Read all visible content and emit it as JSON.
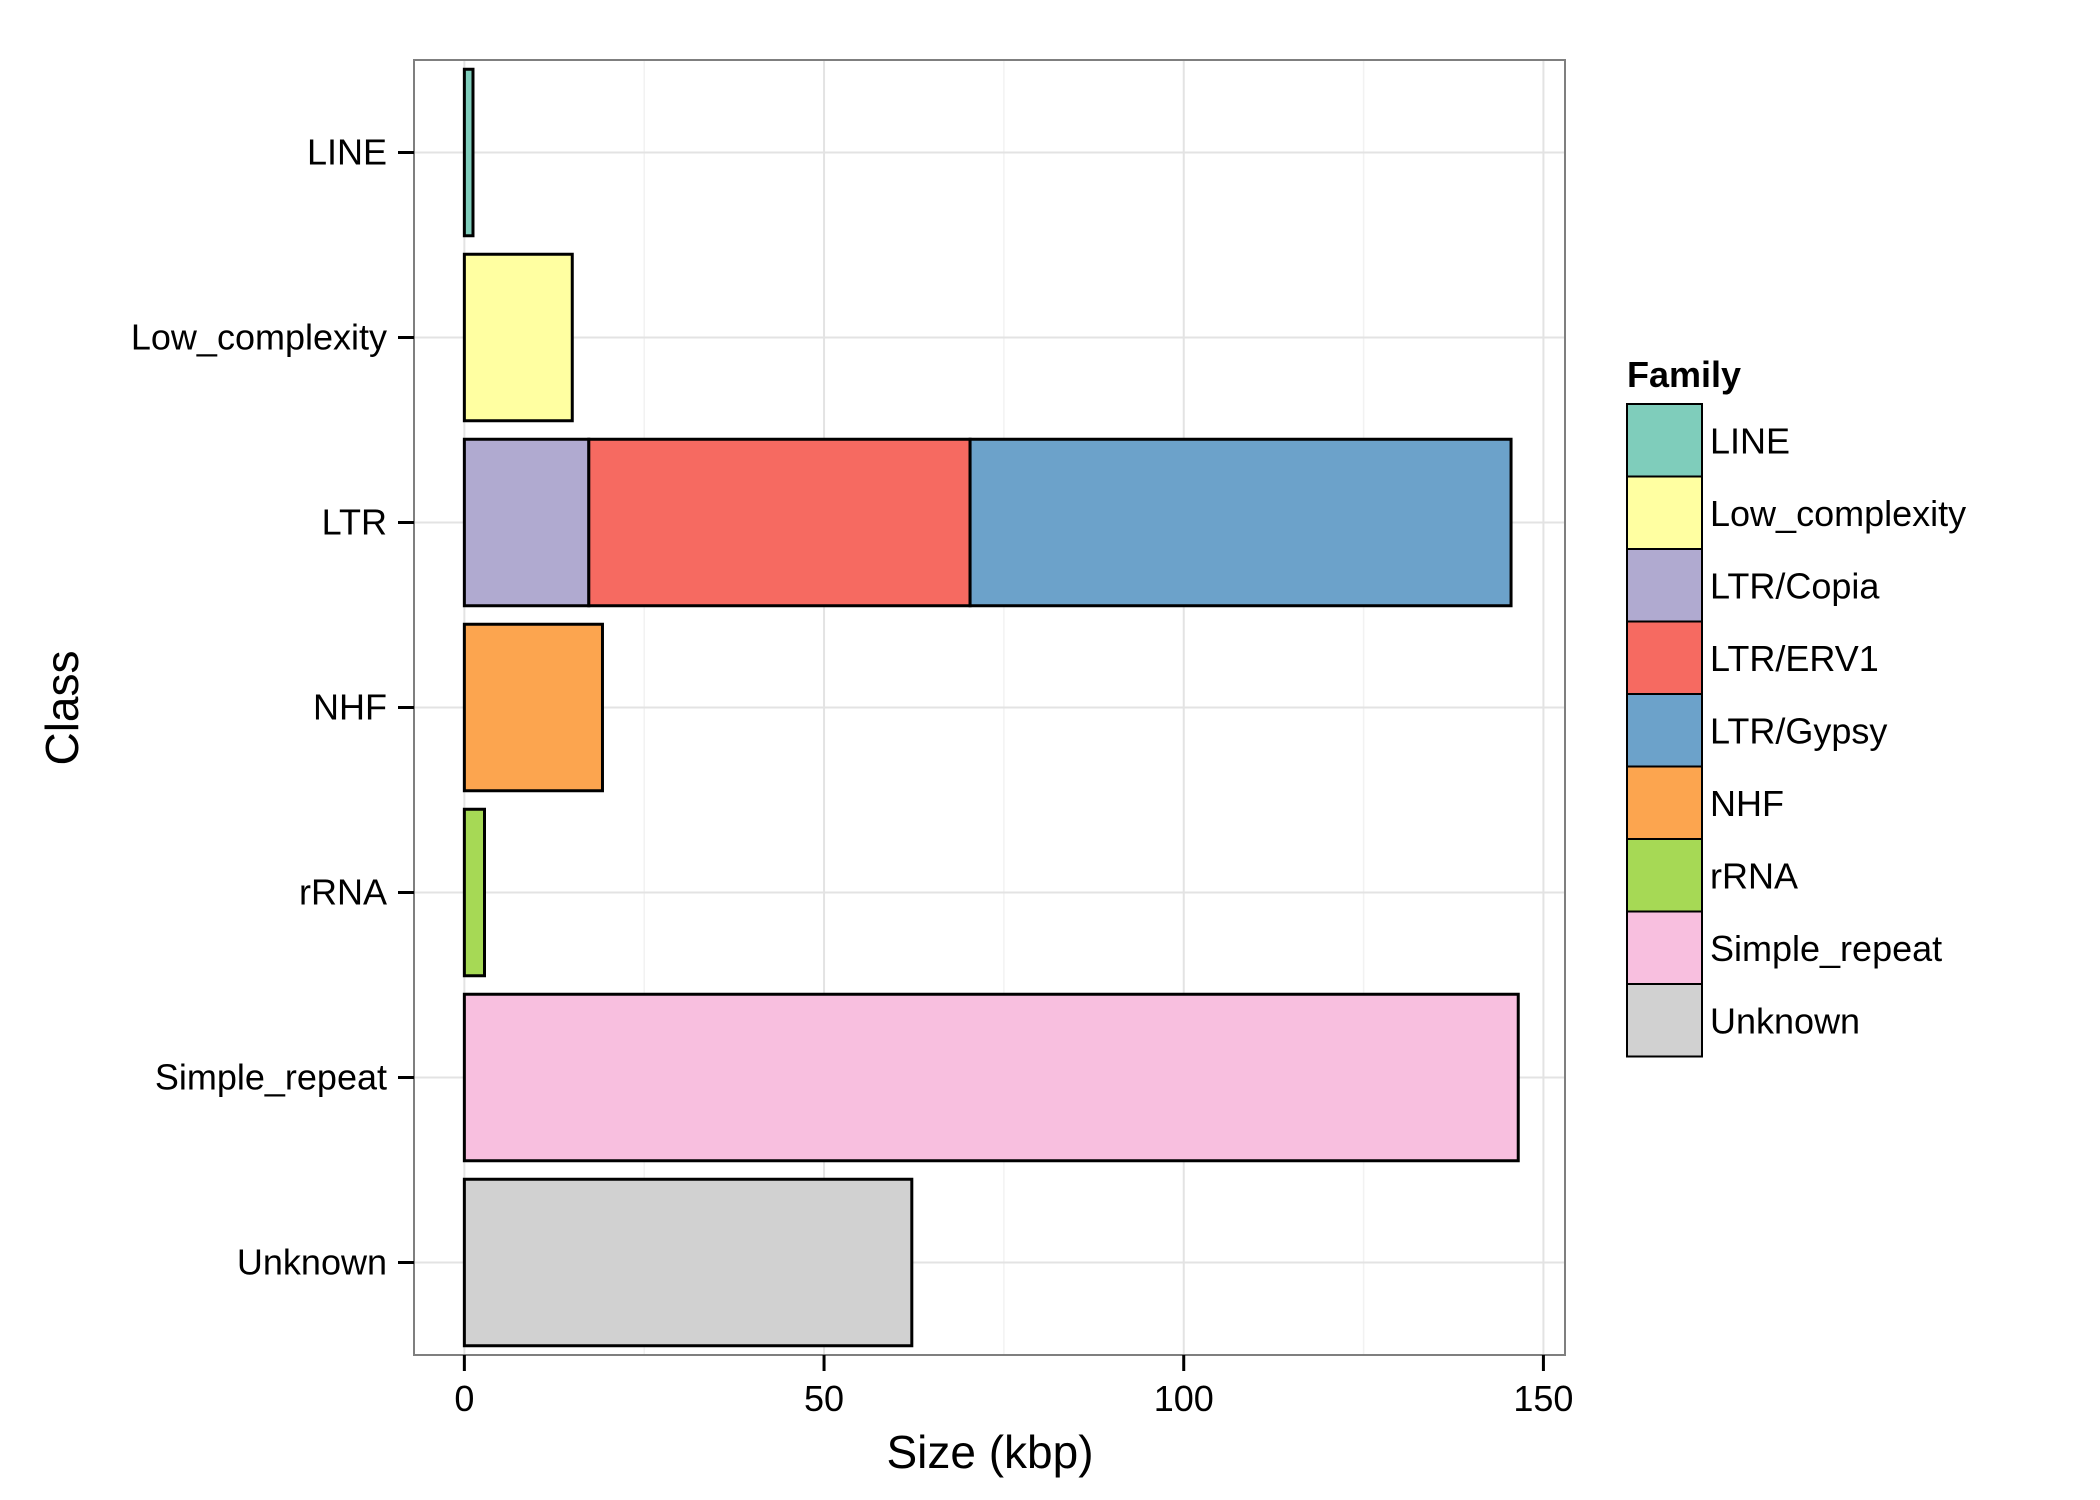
{
  "chart_data": {
    "type": "bar",
    "orientation": "horizontal",
    "stacked": true,
    "xlabel": "Size (kbp)",
    "ylabel": "Class",
    "xlim": [
      -7,
      153
    ],
    "x_ticks": [
      0,
      50,
      100,
      150
    ],
    "x_tick_labels": [
      "0",
      "50",
      "100",
      "150"
    ],
    "grid": true,
    "legend": {
      "title": "Family",
      "position": "right",
      "entries": [
        {
          "name": "LINE",
          "color": "#7fcdbb"
        },
        {
          "name": "Low_complexity",
          "color": "#ffffa1"
        },
        {
          "name": "LTR/Copia",
          "color": "#b0aad0"
        },
        {
          "name": "LTR/ERV1",
          "color": "#f66a61"
        },
        {
          "name": "LTR/Gypsy",
          "color": "#6ca2ca"
        },
        {
          "name": "NHF",
          "color": "#fca54f"
        },
        {
          "name": "rRNA",
          "color": "#a6d955"
        },
        {
          "name": "Simple_repeat",
          "color": "#f8bfdf"
        },
        {
          "name": "Unknown",
          "color": "#d1d1d1"
        }
      ]
    },
    "categories": [
      "LINE",
      "Low_complexity",
      "LTR",
      "NHF",
      "rRNA",
      "Simple_repeat",
      "Unknown"
    ],
    "bars": [
      {
        "category": "LINE",
        "segments": [
          {
            "family": "LINE",
            "value": 1.2
          }
        ]
      },
      {
        "category": "Low_complexity",
        "segments": [
          {
            "family": "Low_complexity",
            "value": 15
          }
        ]
      },
      {
        "category": "LTR",
        "segments": [
          {
            "family": "LTR/Copia",
            "value": 17.3
          },
          {
            "family": "LTR/ERV1",
            "value": 53.0
          },
          {
            "family": "LTR/Gypsy",
            "value": 75.2
          }
        ]
      },
      {
        "category": "NHF",
        "segments": [
          {
            "family": "NHF",
            "value": 19.2
          }
        ]
      },
      {
        "category": "rRNA",
        "segments": [
          {
            "family": "rRNA",
            "value": 2.8
          }
        ]
      },
      {
        "category": "Simple_repeat",
        "segments": [
          {
            "family": "Simple_repeat",
            "value": 146.5
          }
        ]
      },
      {
        "category": "Unknown",
        "segments": [
          {
            "family": "Unknown",
            "value": 62.2
          }
        ]
      }
    ]
  }
}
